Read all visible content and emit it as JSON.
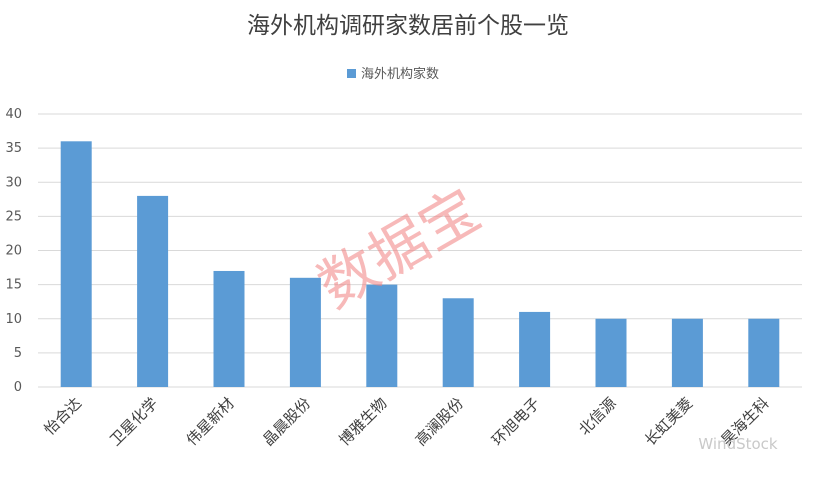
{
  "chart_data": {
    "type": "bar",
    "title": "海外机构调研家数居前个股一览",
    "series": [
      {
        "name": "海外机构家数",
        "values": [
          36,
          28,
          17,
          16,
          15,
          13,
          11,
          10,
          10,
          10
        ]
      }
    ],
    "categories": [
      "怡合达",
      "卫星化学",
      "伟星新材",
      "晶晨股份",
      "博雅生物",
      "高澜股份",
      "环旭电子",
      "北信源",
      "长虹美菱",
      "昊海生科"
    ],
    "ylim": [
      0,
      40
    ],
    "yticks": [
      0,
      5,
      10,
      15,
      20,
      25,
      30,
      35,
      40
    ],
    "grid": true,
    "legend": "top-center",
    "bar_color": "#5b9bd5"
  },
  "watermarks": {
    "main": "数据宝",
    "corner": "WindStock"
  }
}
